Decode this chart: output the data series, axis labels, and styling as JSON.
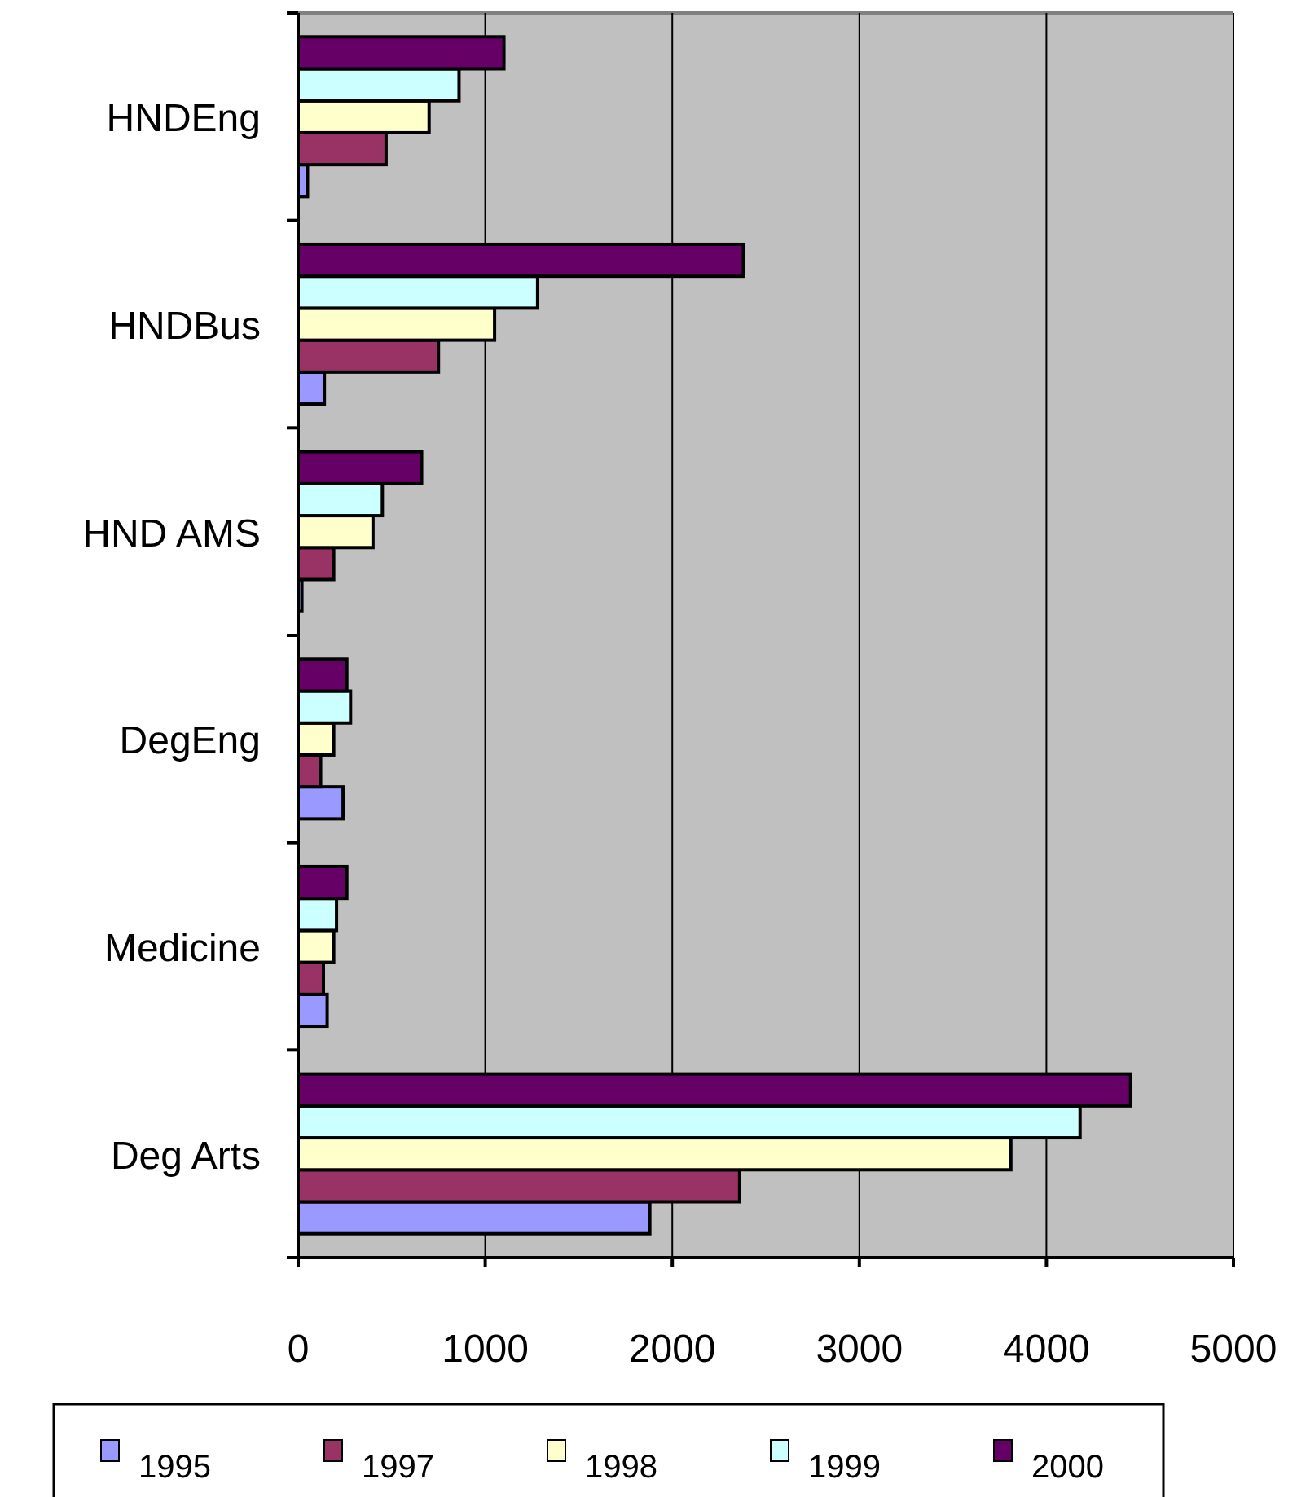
{
  "chart_data": {
    "type": "bar",
    "orientation": "horizontal",
    "categories": [
      "HNDEng",
      "HNDBus",
      "HND AMS",
      "DegEng",
      "Medicine",
      "Deg Arts"
    ],
    "series": [
      {
        "name": "1995",
        "color": "#9999ff",
        "values": [
          50,
          140,
          20,
          240,
          155,
          1880
        ]
      },
      {
        "name": "1997",
        "color": "#993366",
        "values": [
          470,
          750,
          190,
          120,
          135,
          2360
        ]
      },
      {
        "name": "1998",
        "color": "#ffffcc",
        "values": [
          700,
          1050,
          400,
          190,
          190,
          3810
        ]
      },
      {
        "name": "1999",
        "color": "#ccffff",
        "values": [
          860,
          1280,
          450,
          280,
          205,
          4180
        ]
      },
      {
        "name": "2000",
        "color": "#660066",
        "values": [
          1100,
          2380,
          660,
          260,
          260,
          4450
        ]
      }
    ],
    "xlim": [
      0,
      5000
    ],
    "xticks": [
      0,
      1000,
      2000,
      3000,
      4000,
      5000
    ],
    "grid": "x",
    "legend": "bottom"
  }
}
